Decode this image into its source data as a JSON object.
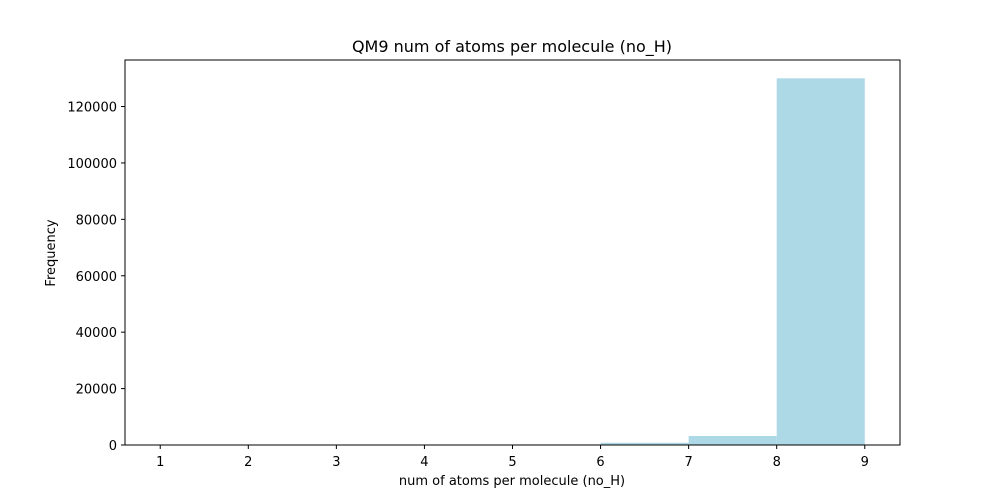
{
  "chart_data": {
    "type": "bar",
    "title": "QM9 num of atoms per molecule (no_H)",
    "xlabel": "num of atoms per molecule (no_H)",
    "ylabel": "Frequency",
    "xlim": [
      0.6,
      9.4
    ],
    "ylim": [
      0,
      136500
    ],
    "xticks": [
      1,
      2,
      3,
      4,
      5,
      6,
      7,
      8,
      9
    ],
    "yticks": [
      0,
      20000,
      40000,
      60000,
      80000,
      100000,
      120000
    ],
    "bins": [
      {
        "x0": 1,
        "x1": 2,
        "value": 5
      },
      {
        "x0": 2,
        "x1": 3,
        "value": 10
      },
      {
        "x0": 3,
        "x1": 4,
        "value": 20
      },
      {
        "x0": 4,
        "x1": 5,
        "value": 60
      },
      {
        "x0": 5,
        "x1": 6,
        "value": 200
      },
      {
        "x0": 6,
        "x1": 7,
        "value": 800
      },
      {
        "x0": 7,
        "x1": 8,
        "value": 3200
      },
      {
        "x0": 8,
        "x1": 9,
        "value": 130000
      }
    ],
    "bar_color": "#add8e6",
    "grid": false,
    "legend": "none"
  }
}
